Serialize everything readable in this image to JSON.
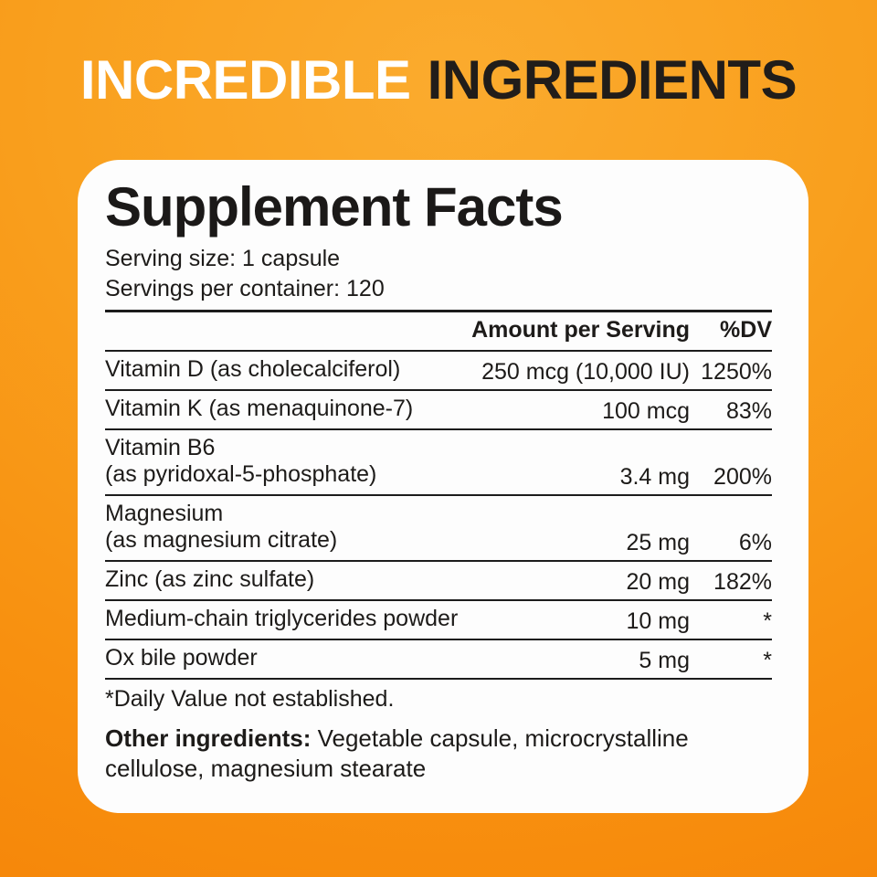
{
  "header": {
    "title_white": "INCREDIBLE",
    "title_dark": "INGREDIENTS"
  },
  "panel": {
    "title": "Supplement Facts",
    "serving_size": "Serving size: 1 capsule",
    "servings_per_container": "Servings per container: 120",
    "table": {
      "col_amount": "Amount per Serving",
      "col_dv": "%DV",
      "rows": [
        {
          "name": "Vitamin D (as cholecalciferol)",
          "sub": "",
          "amount": "250 mcg (10,000 IU)",
          "dv": "1250%"
        },
        {
          "name": "Vitamin K (as menaquinone-7)",
          "sub": "",
          "amount": "100 mcg",
          "dv": "83%"
        },
        {
          "name": "Vitamin B6",
          "sub": "(as pyridoxal-5-phosphate)",
          "amount": "3.4 mg",
          "dv": "200%"
        },
        {
          "name": "Magnesium",
          "sub": "(as magnesium citrate)",
          "amount": "25 mg",
          "dv": "6%"
        },
        {
          "name": "Zinc (as zinc sulfate)",
          "sub": "",
          "amount": "20 mg",
          "dv": "182%"
        },
        {
          "name": "Medium-chain triglycerides powder",
          "sub": "",
          "amount": "10 mg",
          "dv": "*"
        },
        {
          "name": "Ox bile powder",
          "sub": "",
          "amount": "5 mg",
          "dv": "*"
        }
      ]
    },
    "footnote": "*Daily Value not established.",
    "other_ingredients_label": "Other ingredients:",
    "other_ingredients_text": "Vegetable capsule, microcrystalline cellulose, magnesium stearate"
  },
  "colors": {
    "background_light": "#fbab2e",
    "background_dark": "#f17e06",
    "panel_background": "#fdfdfd",
    "text": "#1d1b19",
    "headline_white": "#ffffff",
    "headline_dark": "#211d1a"
  }
}
